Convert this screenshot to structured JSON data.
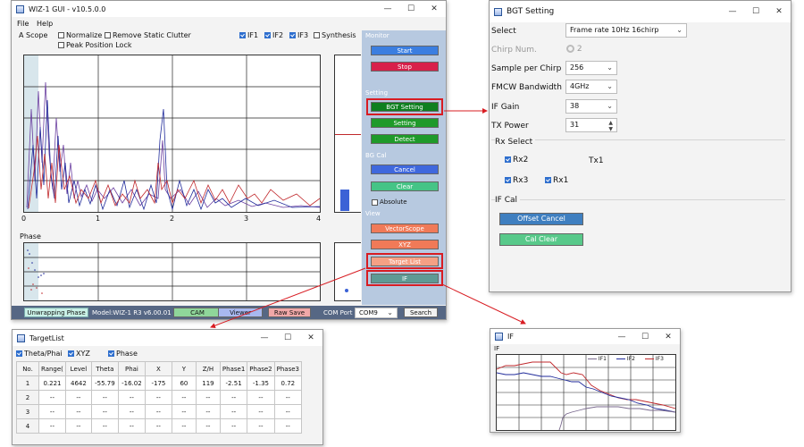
{
  "main": {
    "title": "WIZ-1 GUI - v10.5.0.0",
    "menu": [
      "File",
      "Help"
    ],
    "controls": {
      "scope_label": "A Scope",
      "normalize": "Normalize",
      "remove_clutter": "Remove Static Clutter",
      "peak_lock": "Peak Position Lock",
      "if1": "IF1",
      "if2": "IF2",
      "if3": "IF3",
      "synthesis": "Synthesis"
    },
    "plot": {
      "x_ticks": [
        "0",
        "1",
        "2",
        "3",
        "4"
      ],
      "phase_label": "Phase"
    },
    "sidebar": {
      "monitor": "Monitor",
      "start": "Start",
      "stop": "Stop",
      "setting_group": "Setting",
      "bgt_setting": "BGT Setting",
      "setting": "Setting",
      "detect": "Detect",
      "bgcal": "BG Cal",
      "cancel": "Cancel",
      "clear": "Clear",
      "absolute": "Absolute",
      "view": "View",
      "vectorscope": "VectorScope",
      "xyz": "XYZ",
      "target_list": "Target List",
      "if": "IF"
    },
    "status": {
      "unwrap": "Unwrapping Phase",
      "model": "Model:WIZ-1 R3 v6.00.01",
      "cam": "CAM",
      "viewer": "Viewer",
      "raw_save": "Raw Save",
      "com_label": "COM Port",
      "com_value": "COM9",
      "search": "Search"
    },
    "colors": {
      "if1": "#6b3fa0",
      "if2": "#1f2a9a",
      "if3": "#c0282c",
      "sidebar_bg": "#b7c9e0",
      "accent": "#d81c22"
    }
  },
  "bgt": {
    "title": "BGT Setting",
    "select_label": "Select",
    "select_value": "Frame rate 10Hz 16chirp",
    "chirp_label": "Chirp Num.",
    "chirp_value": "2",
    "spc_label": "Sample per Chirp",
    "spc_value": "256",
    "bw_label": "FMCW Bandwidth",
    "bw_value": "4GHz",
    "ifgain_label": "IF Gain",
    "ifgain_value": "38",
    "tx_label": "TX Power",
    "tx_value": "31",
    "rx_label": "Rx Select",
    "rx2": "Rx2",
    "tx1": "Tx1",
    "rx3": "Rx3",
    "rx1": "Rx1",
    "ifcal_label": "IF Cal",
    "offset_cancel": "Offset Cancel",
    "cal_clear": "Cal Clear"
  },
  "tl": {
    "title": "TargetList",
    "theta_phai": "Theta/Phai",
    "xyz": "XYZ",
    "phase": "Phase",
    "headers": [
      "No.",
      "Range(",
      "Level",
      "Theta",
      "Phai",
      "X",
      "Y",
      "Z/H",
      "Phase1",
      "Phase2",
      "Phase3"
    ],
    "rows": [
      [
        "1",
        "0.221",
        "4642",
        "-55.79",
        "-16.02",
        "-175",
        "60",
        "119",
        "-2.51",
        "-1.35",
        "0.72"
      ],
      [
        "2",
        "--",
        "--",
        "--",
        "--",
        "--",
        "--",
        "--",
        "--",
        "--",
        "--"
      ],
      [
        "3",
        "--",
        "--",
        "--",
        "--",
        "--",
        "--",
        "--",
        "--",
        "--",
        "--"
      ],
      [
        "4",
        "--",
        "--",
        "--",
        "--",
        "--",
        "--",
        "--",
        "--",
        "--",
        "--"
      ]
    ]
  },
  "ifw": {
    "title": "IF",
    "plot_label": "IF",
    "legend": [
      "IF1",
      "IF2",
      "IF3"
    ]
  }
}
